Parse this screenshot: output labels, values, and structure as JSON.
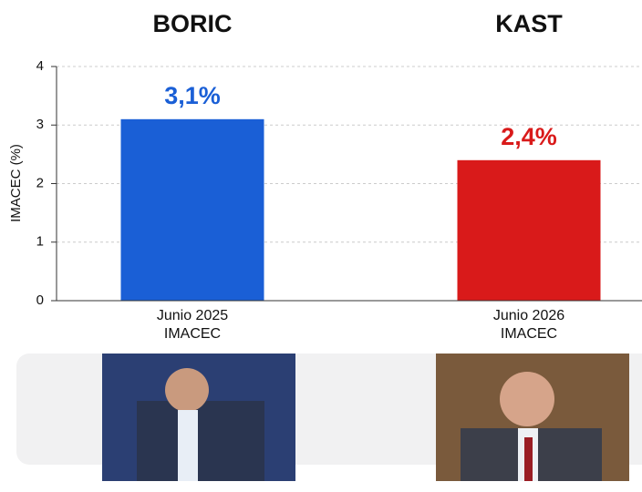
{
  "chart_data": {
    "type": "bar",
    "headers": [
      "BORIC",
      "KAST"
    ],
    "y_label": "IMACEC (%)",
    "categories": [
      "Junio 2025",
      "Junio 2026"
    ],
    "category_sublabels": [
      "IMACEC",
      "IMACEC"
    ],
    "values": [
      3.1,
      2.4
    ],
    "value_labels": [
      "3,1%",
      "2,4%"
    ],
    "colors": [
      "#1a5fd6",
      "#d91a1a"
    ],
    "ylim": [
      0,
      4
    ],
    "yticks": [
      0,
      1,
      2,
      3,
      4
    ],
    "grid": true
  }
}
